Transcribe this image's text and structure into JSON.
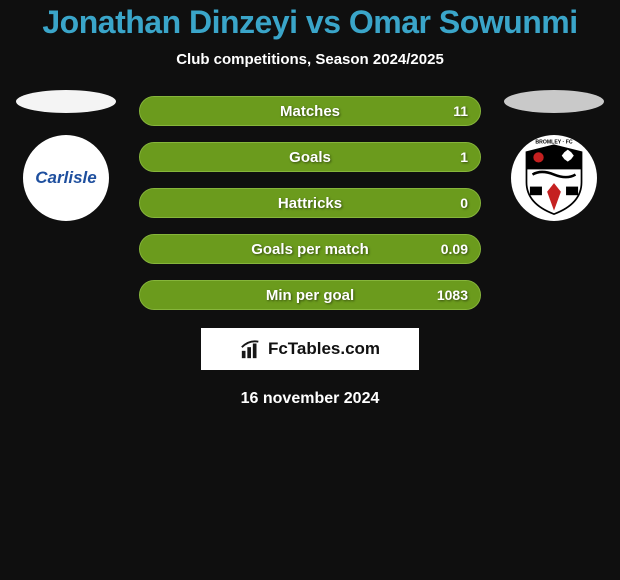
{
  "title": "Jonathan Dinzeyi vs Omar Sowunmi",
  "title_color": "#3aa5c9",
  "subtitle": "Club competitions, Season 2024/2025",
  "subtitle_color": "#ffffff",
  "background_color": "#0f0f0f",
  "left": {
    "oval_color": "#f4f4f4",
    "club_bg": "#ffffff",
    "club_name": "Carlisle",
    "club_text_color": "#1e4f9e",
    "club_italic": true
  },
  "right": {
    "oval_color": "#c9c9c9",
    "club_bg": "#ffffff",
    "club_name": "BROMLEY · FC",
    "shield": {
      "top_bg": "#000000",
      "bottom_bg": "#ffffff",
      "accent": "#c52020"
    }
  },
  "rows": [
    {
      "label": "Matches",
      "value": "11",
      "fill_pct": 100,
      "fill_color": "#6b9b1d",
      "track_color": "#6a9a1c"
    },
    {
      "label": "Goals",
      "value": "1",
      "fill_pct": 100,
      "fill_color": "#6b9b1d",
      "track_color": "#6a9a1c"
    },
    {
      "label": "Hattricks",
      "value": "0",
      "fill_pct": 100,
      "fill_color": "#6b9b1d",
      "track_color": "#6a9a1c"
    },
    {
      "label": "Goals per match",
      "value": "0.09",
      "fill_pct": 100,
      "fill_color": "#6b9b1d",
      "track_color": "#6a9a1c"
    },
    {
      "label": "Min per goal",
      "value": "1083",
      "fill_pct": 100,
      "fill_color": "#6b9b1d",
      "track_color": "#6a9a1c"
    }
  ],
  "row_style": {
    "height": 30,
    "radius": 15,
    "label_color": "#ffffff",
    "value_color": "#ffffff",
    "label_fontsize": 15,
    "value_fontsize": 14,
    "border_color": "#86b53b"
  },
  "brand": {
    "text": "FcTables.com",
    "bg": "#ffffff",
    "text_color": "#111111",
    "icon_color": "#171717"
  },
  "date_text": "16 november 2024",
  "date_color": "#ffffff"
}
